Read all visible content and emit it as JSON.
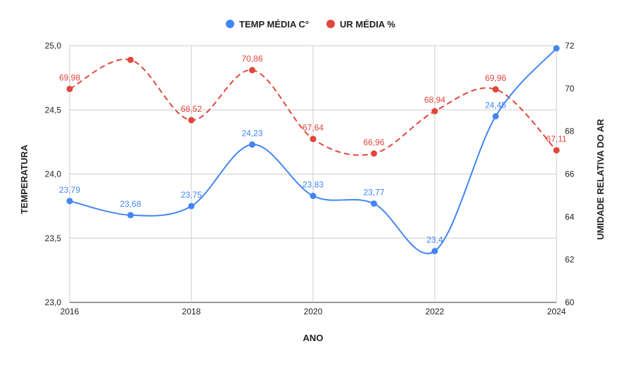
{
  "chart_data": {
    "type": "line",
    "title": "",
    "x": [
      "2016",
      "2017",
      "2018",
      "2019",
      "2020",
      "2021",
      "2022",
      "2023",
      "2024"
    ],
    "xticks": [
      "2016",
      "2018",
      "2020",
      "2022",
      "2024"
    ],
    "xlabel": "ANO",
    "ylabel": "TEMPERATURA",
    "y2label": "UMIDADE RELATIVA DO AR",
    "ylim": [
      23.0,
      25.0
    ],
    "yticks": [
      "23,0",
      "23,5",
      "24,0",
      "24,5",
      "25,0"
    ],
    "y2lim": [
      60,
      72
    ],
    "y2ticks": [
      "60",
      "62",
      "64",
      "66",
      "68",
      "70",
      "72"
    ],
    "grid": true,
    "legend_position": "top",
    "series": [
      {
        "name": "TEMP MÉDIA C°",
        "axis": "left",
        "color": "#4285f4",
        "dashed": false,
        "values": [
          23.79,
          23.68,
          23.75,
          24.23,
          23.83,
          23.77,
          23.4,
          24.45,
          24.98
        ],
        "labels": [
          "23,79",
          "23,68",
          "23,75",
          "24,23",
          "23,83",
          "23,77",
          "23,4",
          "24,45",
          ""
        ]
      },
      {
        "name": "UR MÉDIA %",
        "axis": "right",
        "color": "#e2463c",
        "dashed": true,
        "values": [
          69.98,
          71.34,
          68.52,
          70.86,
          67.64,
          66.96,
          68.94,
          69.96,
          67.11
        ],
        "labels": [
          "69,98",
          "",
          "68,52",
          "70,86",
          "67,64",
          "66,96",
          "68,94",
          "69,96",
          "67,11"
        ]
      }
    ]
  }
}
